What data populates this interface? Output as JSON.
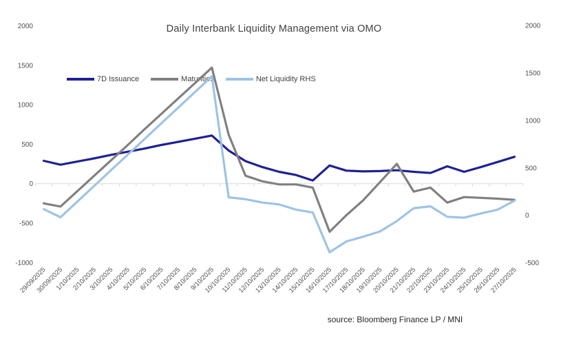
{
  "chart_data": {
    "type": "line",
    "title": "Daily Interbank Liquidity Management via OMO",
    "source": "source: Bloomberg Finance LP / MNI",
    "grid": "zero-line-only",
    "legend_position": "top-left-inside",
    "left_axis": {
      "ticks": [
        2000,
        1500,
        1000,
        500,
        0,
        -500,
        -1000
      ],
      "range": [
        -1000,
        2000
      ]
    },
    "right_axis": {
      "ticks": [
        2000,
        1500,
        1000,
        500,
        0,
        -500
      ],
      "range": [
        -560,
        2010
      ]
    },
    "x": [
      "29/09/2025",
      "30/09/2025",
      "1/10/2025",
      "2/10/2025",
      "3/10/2025",
      "4/10/2025",
      "5/10/2025",
      "6/10/2025",
      "7/10/2025",
      "8/10/2025",
      "9/10/2025",
      "10/10/2025",
      "11/10/2025",
      "12/10/2025",
      "13/10/2025",
      "14/10/2025",
      "15/10/2025",
      "16/10/2025",
      "17/10/2025",
      "18/10/2025",
      "19/10/2025",
      "20/10/2025",
      "21/10/2025",
      "22/10/2025",
      "23/10/2025",
      "24/10/2025",
      "25/10/2025",
      "26/10/2025",
      "27/10/2025"
    ],
    "series": [
      {
        "name": "7D Issuance",
        "axis": "left",
        "color": "#1F2193",
        "values": [
          290,
          240,
          280,
          320,
          365,
          405,
          445,
          490,
          530,
          570,
          610,
          420,
          285,
          210,
          150,
          110,
          40,
          230,
          165,
          155,
          160,
          170,
          150,
          135,
          220,
          150,
          210,
          275,
          340
        ]
      },
      {
        "name": "Maturities",
        "axis": "left",
        "color": "#808080",
        "values": [
          -250,
          -290,
          -95,
          100,
          295,
          490,
          690,
          885,
          1080,
          1275,
          1470,
          620,
          100,
          30,
          -10,
          -10,
          -50,
          -610,
          -400,
          -210,
          20,
          250,
          -100,
          -50,
          -240,
          -170,
          -180,
          -190,
          -205
        ]
      },
      {
        "name": "Net Liquidity RHS",
        "axis": "right",
        "color": "#9DC3E6",
        "values": [
          65,
          -20,
          145,
          310,
          475,
          640,
          805,
          970,
          1135,
          1300,
          1465,
          190,
          170,
          135,
          115,
          60,
          30,
          -390,
          -275,
          -225,
          -170,
          -60,
          75,
          95,
          -15,
          -25,
          20,
          60,
          155
        ]
      }
    ]
  }
}
